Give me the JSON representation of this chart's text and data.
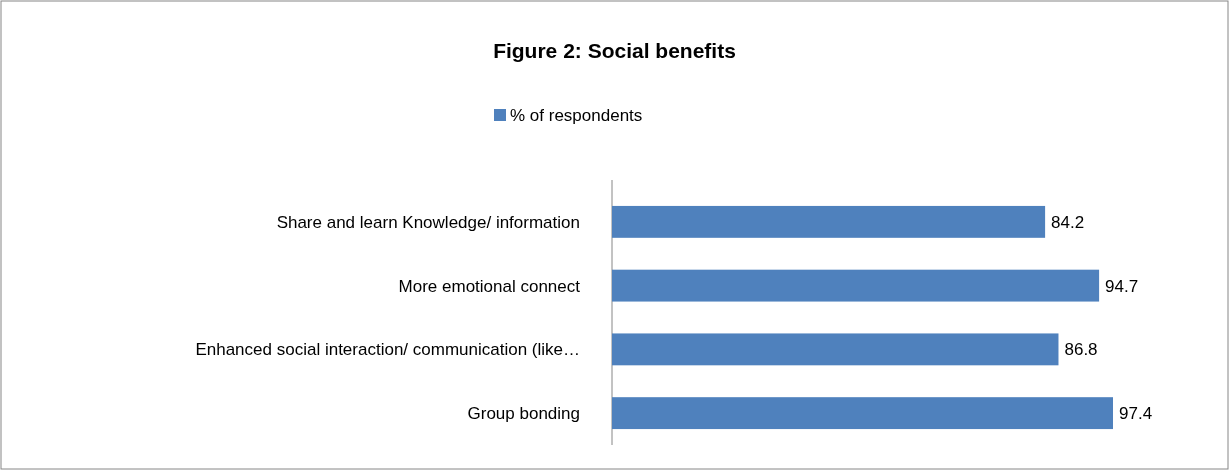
{
  "chart_data": {
    "type": "bar",
    "orientation": "horizontal",
    "title": "Figure 2: Social benefits",
    "categories": [
      "Share and learn Knowledge/ information",
      "More emotional connect",
      "Enhanced social interaction/ communication (like…",
      "Group bonding"
    ],
    "series": [
      {
        "name": "% of respondents",
        "color": "#4f81bd",
        "values": [
          84.2,
          94.7,
          86.8,
          97.4
        ]
      }
    ],
    "data_labels": true,
    "legend": "top",
    "grid": false
  }
}
